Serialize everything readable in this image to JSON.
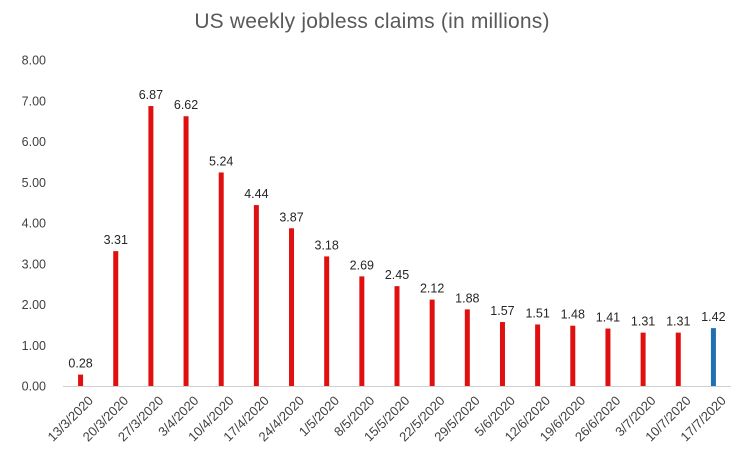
{
  "chart_data": {
    "type": "bar",
    "title": "US weekly jobless claims (in millions)",
    "xlabel": "",
    "ylabel": "",
    "ylim": [
      0,
      8
    ],
    "y_ticks": [
      "0.00",
      "1.00",
      "2.00",
      "3.00",
      "4.00",
      "5.00",
      "6.00",
      "7.00",
      "8.00"
    ],
    "grid": false,
    "legend": "none",
    "categories": [
      "13/3/2020",
      "20/3/2020",
      "27/3/2020",
      "3/4/2020",
      "10/4/2020",
      "17/4/2020",
      "24/4/2020",
      "1/5/2020",
      "8/5/2020",
      "15/5/2020",
      "22/5/2020",
      "29/5/2020",
      "5/6/2020",
      "12/6/2020",
      "19/6/2020",
      "26/6/2020",
      "3/7/2020",
      "10/7/2020",
      "17/7/2020"
    ],
    "values": [
      0.28,
      3.31,
      6.87,
      6.62,
      5.24,
      4.44,
      3.87,
      3.18,
      2.69,
      2.45,
      2.12,
      1.88,
      1.57,
      1.51,
      1.48,
      1.41,
      1.31,
      1.31,
      1.42
    ],
    "value_labels": [
      "0.28",
      "3.31",
      "6.87",
      "6.62",
      "5.24",
      "4.44",
      "3.87",
      "3.18",
      "2.69",
      "2.45",
      "2.12",
      "1.88",
      "1.57",
      "1.51",
      "1.48",
      "1.41",
      "1.31",
      "1.31",
      "1.42"
    ],
    "colors": {
      "default": "#e01010",
      "highlight": "#1f6fb5",
      "highlight_index": 18
    }
  }
}
